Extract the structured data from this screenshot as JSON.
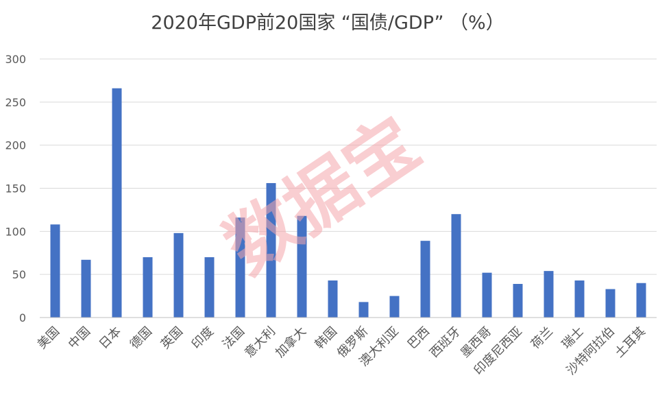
{
  "chart_data": {
    "type": "bar",
    "title": "2020年GDP前20国家 “国债/GDP” （%）",
    "xlabel": "",
    "ylabel": "",
    "ylim": [
      0,
      300
    ],
    "yticks": [
      0,
      50,
      100,
      150,
      200,
      250,
      300
    ],
    "grid": true,
    "legend": "none",
    "bar_color": "#4472C4",
    "categories": [
      "美国",
      "中国",
      "日本",
      "德国",
      "英国",
      "印度",
      "法国",
      "意大利",
      "加拿大",
      "韩国",
      "俄罗斯",
      "澳大利亚",
      "巴西",
      "西班牙",
      "墨西哥",
      "印度尼西亚",
      "荷兰",
      "瑞士",
      "沙特阿拉伯",
      "土耳其"
    ],
    "values": [
      108,
      67,
      266,
      70,
      98,
      70,
      116,
      156,
      118,
      43,
      18,
      25,
      89,
      120,
      52,
      39,
      54,
      43,
      33,
      40
    ]
  },
  "watermark": {
    "text": "数据宝",
    "color": "#F4A6AC"
  }
}
